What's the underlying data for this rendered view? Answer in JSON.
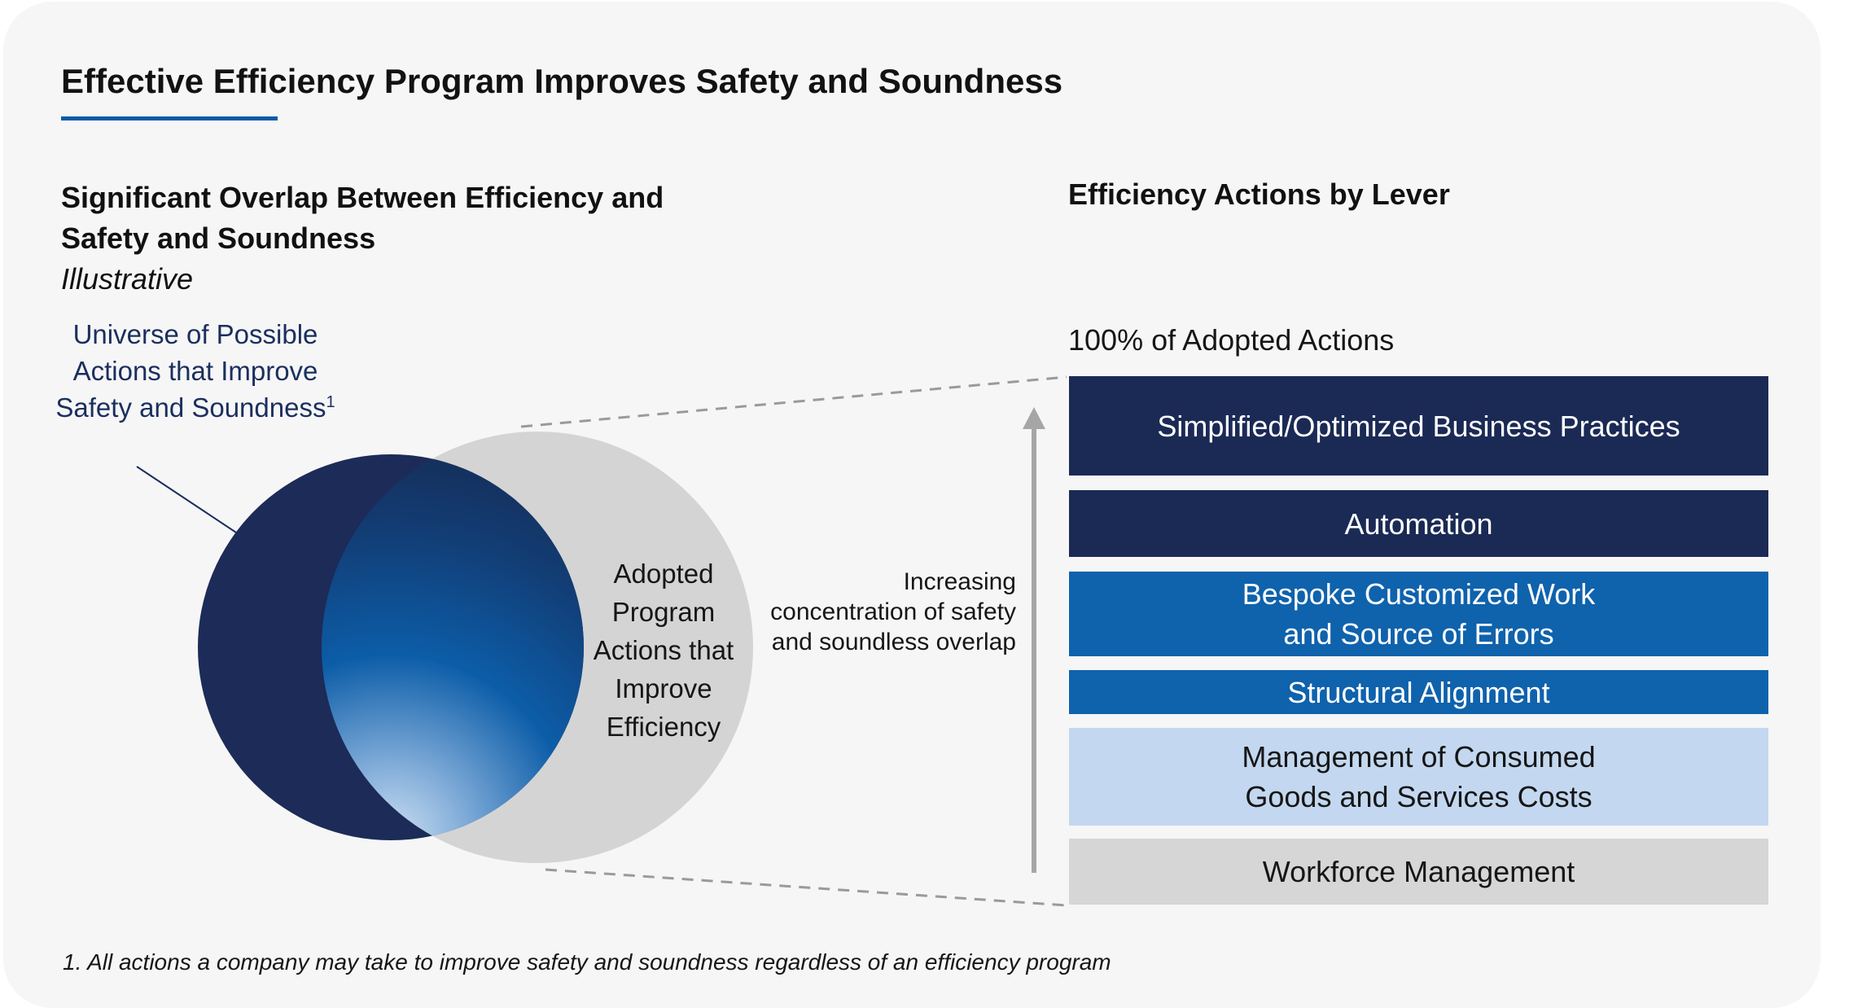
{
  "title": "Effective Efficiency Program Improves Safety and Soundness",
  "left_panel": {
    "heading": "Significant Overlap Between Efficiency and Safety and Soundness",
    "subheading": "Illustrative",
    "universe_label": "Universe of Possible Actions that Improve Safety and Soundness",
    "universe_footnote_mark": "1",
    "adopted_label": "Adopted Program Actions that Improve Efficiency"
  },
  "arrow_label": "Increasing concentration of safety and soundless overlap",
  "right_panel": {
    "heading": "Efficiency Actions by Lever",
    "top_label": "100% of Adopted Actions",
    "levers": [
      {
        "label": "Simplified/Optimized Business Practices",
        "color": "#1b2a55",
        "text_color": "#ffffff"
      },
      {
        "label": "Automation",
        "color": "#1b2a55",
        "text_color": "#ffffff"
      },
      {
        "label": "Bespoke Customized Work and Source of Errors",
        "color": "#0f62ac",
        "text_color": "#ffffff"
      },
      {
        "label": "Structural Alignment",
        "color": "#0f62ac",
        "text_color": "#ffffff"
      },
      {
        "label": "Management of Consumed Goods and Services Costs",
        "color": "#c3d8f0",
        "text_color": "#161616"
      },
      {
        "label": "Workforce Management",
        "color": "#d6d6d6",
        "text_color": "#161616"
      }
    ]
  },
  "footnote": "1. All actions a company may take to improve safety and soundness regardless of an efficiency program",
  "colors": {
    "navy": "#1b2a55",
    "blue": "#0f62ac",
    "light_blue": "#c3d8f0",
    "gray": "#d6d6d6",
    "accent_line": "#0d5ba8"
  }
}
